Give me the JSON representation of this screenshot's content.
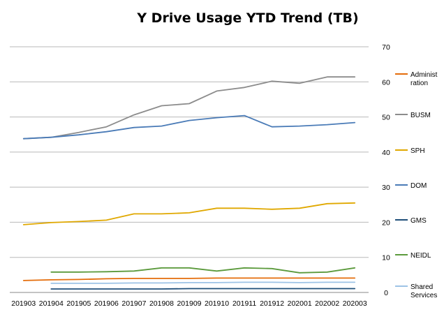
{
  "chart_data": {
    "type": "line",
    "title": "Y Drive Usage YTD Trend (TB)",
    "xlabel": "",
    "ylabel": "",
    "categories": [
      "201903",
      "201904",
      "201905",
      "201906",
      "201907",
      "201908",
      "201909",
      "201910",
      "201911",
      "201912",
      "202001",
      "202002",
      "202003"
    ],
    "ylim": [
      0,
      70
    ],
    "yticks": [
      0,
      10,
      20,
      30,
      40,
      50,
      60,
      70
    ],
    "y_axis_side": "right",
    "grid": true,
    "legend_position": "right",
    "series": [
      {
        "name": "Administration",
        "legend_lines": [
          "Administ",
          "ration"
        ],
        "color": "#e46c0a",
        "values": [
          3.4,
          3.6,
          3.7,
          3.9,
          4.0,
          4.0,
          4.0,
          4.1,
          4.1,
          4.1,
          4.1,
          4.1,
          4.1
        ]
      },
      {
        "name": "BUSM",
        "legend_lines": [
          "BUSM"
        ],
        "color": "#8c8c8c",
        "values": [
          43.8,
          44.2,
          45.6,
          47.2,
          50.6,
          53.2,
          53.8,
          57.4,
          58.4,
          60.2,
          59.6,
          61.4,
          61.4
        ]
      },
      {
        "name": "SPH",
        "legend_lines": [
          "SPH"
        ],
        "color": "#e0a800",
        "values": [
          19.3,
          19.9,
          20.2,
          20.6,
          22.4,
          22.4,
          22.7,
          24.0,
          24.0,
          23.7,
          24.0,
          25.3,
          25.5
        ]
      },
      {
        "name": "DOM",
        "legend_lines": [
          "DOM"
        ],
        "color": "#4a7bb7",
        "values": [
          43.8,
          44.2,
          44.9,
          45.8,
          47.0,
          47.4,
          49.0,
          49.8,
          50.4,
          47.2,
          47.4,
          47.8,
          48.4
        ]
      },
      {
        "name": "GMS",
        "legend_lines": [
          "GMS"
        ],
        "color": "#1f4e79",
        "values": [
          null,
          1.0,
          1.0,
          1.0,
          1.0,
          1.0,
          1.1,
          1.1,
          1.1,
          1.1,
          1.1,
          1.1,
          1.1
        ]
      },
      {
        "name": "NEIDL",
        "legend_lines": [
          "NEIDL"
        ],
        "color": "#5b9a3c",
        "values": [
          null,
          5.8,
          5.8,
          5.9,
          6.1,
          7.0,
          7.0,
          6.1,
          7.0,
          6.8,
          5.6,
          5.8,
          7.0
        ]
      },
      {
        "name": "Shared Services",
        "legend_lines": [
          "Shared",
          "Services"
        ],
        "color": "#9dc3e6",
        "values": [
          null,
          2.6,
          2.6,
          2.6,
          2.7,
          2.7,
          2.8,
          2.8,
          2.9,
          2.9,
          2.8,
          2.9,
          2.9
        ]
      }
    ]
  }
}
